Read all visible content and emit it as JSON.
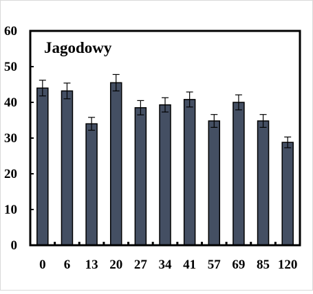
{
  "chart_data": {
    "type": "bar",
    "title": "Jagodowy",
    "xlabel": "",
    "ylabel": "",
    "categories": [
      "0",
      "6",
      "13",
      "20",
      "27",
      "34",
      "41",
      "57",
      "69",
      "85",
      "120"
    ],
    "values": [
      44,
      43.2,
      34,
      45.5,
      38.5,
      39.3,
      40.8,
      34.8,
      40,
      34.8,
      28.8
    ],
    "errors": [
      2.2,
      2.2,
      1.8,
      2.3,
      2.0,
      2.0,
      2.1,
      1.8,
      2.1,
      1.8,
      1.5
    ],
    "ylim": [
      0,
      60
    ],
    "yticks": [
      "0",
      "10",
      "20",
      "30",
      "40",
      "50",
      "60"
    ],
    "grid": false,
    "legend": "none",
    "colors": {
      "bar": "#444f63",
      "axis": "#000000",
      "background": "#ffffff"
    }
  }
}
